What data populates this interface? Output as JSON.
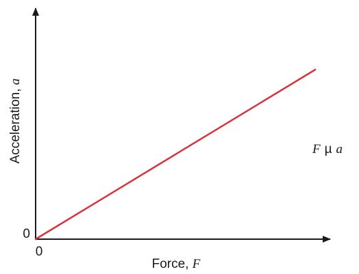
{
  "chart_data": {
    "type": "line",
    "title": "",
    "xlabel": {
      "text": "Force, ",
      "var": "F"
    },
    "ylabel": {
      "text": "Acceleration, ",
      "var": "a"
    },
    "x_origin_label": "0",
    "y_origin_label": "0",
    "xlim": [
      0,
      1
    ],
    "ylim": [
      0,
      1
    ],
    "grid": false,
    "legend": "none",
    "series": [
      {
        "x": [
          0,
          1
        ],
        "y": [
          0,
          0.78
        ],
        "color": "#d9303a"
      }
    ],
    "annotation": {
      "var1": "F",
      "symbol": "µ",
      "var2": "a"
    },
    "colors": {
      "axis": "#1a1a1a",
      "line": "#d9303a"
    }
  }
}
